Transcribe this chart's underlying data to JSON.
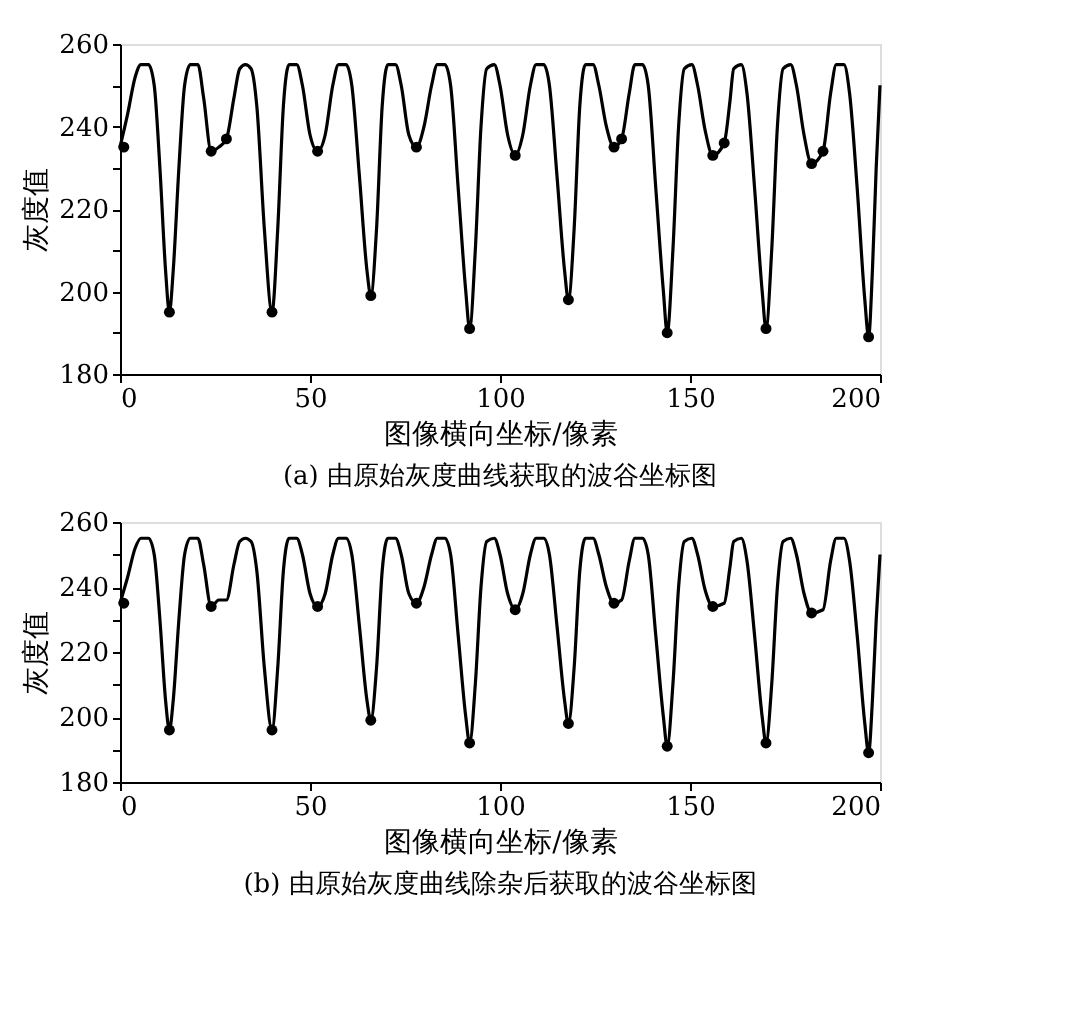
{
  "chart_data": [
    {
      "type": "line",
      "title": "(a) 由原始灰度曲线获取的波谷坐标图",
      "xlabel": "图像横向坐标/像素",
      "ylabel": "灰度值",
      "xlim": [
        0,
        200
      ],
      "xticks": [
        0,
        50,
        100,
        150,
        200
      ],
      "ylim": [
        180,
        260
      ],
      "yticks": [
        180,
        {
          "value": 190,
          "label": null
        },
        200,
        {
          "value": 210,
          "label": null
        },
        220,
        {
          "value": 230,
          "label": null
        },
        240,
        {
          "value": 250,
          "label": null
        },
        260
      ],
      "grid": false,
      "legend": false,
      "series": [
        {
          "type": "line",
          "color": "#000000",
          "marker": "none",
          "line_style": "solid",
          "x": [
            0,
            2,
            4,
            5.5,
            7.5,
            9,
            10.5,
            12,
            13,
            14,
            15.5,
            17,
            18.5,
            20.5,
            22,
            24,
            26,
            28,
            30,
            31.5,
            33,
            34.5,
            36,
            38,
            40,
            41.5,
            43,
            44.5,
            46.5,
            48,
            50,
            52,
            54,
            56,
            57.5,
            59.5,
            61,
            63,
            65,
            66,
            67.5,
            69,
            70.5,
            72.5,
            74,
            76,
            78,
            80,
            82,
            83.5,
            85.5,
            87,
            89,
            91,
            92,
            93.5,
            95,
            96.5,
            98.5,
            100,
            102,
            104,
            106,
            108,
            109.5,
            111.5,
            113,
            115,
            117,
            118,
            119.5,
            121,
            122.5,
            124.5,
            126,
            128,
            130,
            132,
            134,
            135.5,
            137.5,
            139,
            141,
            143,
            144,
            145.5,
            147,
            148.5,
            150.5,
            152,
            154,
            156,
            159,
            160.5,
            161.5,
            163.5,
            165,
            167,
            169,
            170,
            171.5,
            173,
            174.5,
            176.5,
            178,
            180,
            182,
            185,
            187,
            188.5,
            190.5,
            192,
            194,
            196,
            197,
            198,
            199,
            200
          ],
          "values": [
            235,
            243,
            252,
            255,
            255,
            250,
            230,
            205,
            195,
            205,
            230,
            250,
            255,
            255,
            247,
            234,
            235,
            237,
            247,
            254,
            255,
            254,
            245,
            215,
            195,
            215,
            245,
            255,
            255,
            250,
            238,
            234,
            238,
            250,
            255,
            255,
            250,
            228,
            205,
            199,
            215,
            245,
            255,
            255,
            250,
            238,
            235,
            240,
            250,
            255,
            255,
            250,
            225,
            200,
            191,
            210,
            240,
            254,
            255,
            250,
            238,
            233,
            238,
            250,
            255,
            255,
            250,
            228,
            205,
            198,
            215,
            245,
            255,
            255,
            250,
            240,
            235,
            237,
            248,
            255,
            255,
            250,
            225,
            200,
            190,
            210,
            240,
            254,
            255,
            250,
            239,
            233,
            236,
            246,
            254,
            255,
            248,
            225,
            200,
            191,
            210,
            240,
            254,
            255,
            250,
            238,
            231,
            234,
            248,
            255,
            255,
            248,
            225,
            198,
            189,
            205,
            230,
            250
          ]
        },
        {
          "type": "scatter",
          "color": "#000000",
          "marker": "circle",
          "x": [
            1,
            13,
            24,
            28,
            40,
            52,
            66,
            78,
            92,
            104,
            118,
            130,
            132,
            144,
            156,
            159,
            170,
            182,
            185,
            197
          ],
          "values": [
            235,
            195,
            234,
            237,
            195,
            234,
            199,
            235,
            191,
            233,
            198,
            235,
            237,
            190,
            233,
            236,
            191,
            231,
            234,
            189
          ]
        }
      ]
    },
    {
      "type": "line",
      "title": "(b) 由原始灰度曲线除杂后获取的波谷坐标图",
      "xlabel": "图像横向坐标/像素",
      "ylabel": "灰度值",
      "xlim": [
        0,
        200
      ],
      "xticks": [
        0,
        50,
        100,
        150,
        200
      ],
      "ylim": [
        180,
        260
      ],
      "yticks": [
        180,
        {
          "value": 190,
          "label": null
        },
        200,
        {
          "value": 210,
          "label": null
        },
        220,
        {
          "value": 230,
          "label": null
        },
        240,
        {
          "value": 250,
          "label": null
        },
        260
      ],
      "grid": false,
      "legend": false,
      "series": [
        {
          "type": "line",
          "color": "#000000",
          "marker": "none",
          "line_style": "solid",
          "x": [
            0,
            2,
            4,
            5.5,
            7.5,
            9,
            10.5,
            12,
            13,
            14,
            15.5,
            17,
            18.5,
            20.5,
            22,
            24,
            26,
            28,
            30,
            31.5,
            33,
            34.5,
            36,
            38,
            40,
            41.5,
            43,
            44.5,
            46.5,
            48,
            50,
            52,
            54,
            56,
            57.5,
            59.5,
            61,
            63,
            65,
            66,
            67.5,
            69,
            70.5,
            72.5,
            74,
            76,
            78,
            80,
            82,
            83.5,
            85.5,
            87,
            89,
            91,
            92,
            93.5,
            95,
            96.5,
            98.5,
            100,
            102,
            104,
            106,
            108,
            109.5,
            111.5,
            113,
            115,
            117,
            118,
            119.5,
            121,
            122.5,
            124.5,
            126,
            128,
            130,
            132,
            134,
            135.5,
            137.5,
            139,
            141,
            143,
            144,
            145.5,
            147,
            148.5,
            150.5,
            152,
            154,
            156,
            159,
            160.5,
            161.5,
            163.5,
            165,
            167,
            169,
            170,
            171.5,
            173,
            174.5,
            176.5,
            178,
            180,
            182,
            185,
            187,
            188.5,
            190.5,
            192,
            194,
            196,
            197,
            198,
            199,
            200
          ],
          "values": [
            235,
            243,
            252,
            255,
            255,
            250,
            230,
            205,
            196,
            205,
            230,
            250,
            255,
            255,
            247,
            234,
            236,
            236,
            247,
            254,
            255,
            254,
            245,
            215,
            196,
            215,
            245,
            255,
            255,
            250,
            238,
            234,
            238,
            250,
            255,
            255,
            250,
            228,
            205,
            199,
            215,
            245,
            255,
            255,
            250,
            238,
            235,
            240,
            250,
            255,
            255,
            250,
            225,
            200,
            192,
            210,
            240,
            254,
            255,
            250,
            238,
            233,
            238,
            250,
            255,
            255,
            250,
            228,
            205,
            198,
            215,
            245,
            255,
            255,
            250,
            240,
            235,
            236,
            248,
            255,
            255,
            250,
            225,
            200,
            191,
            210,
            240,
            254,
            255,
            250,
            239,
            234,
            235,
            246,
            254,
            255,
            248,
            225,
            200,
            192,
            210,
            240,
            254,
            255,
            250,
            238,
            232,
            233,
            248,
            255,
            255,
            248,
            225,
            198,
            189,
            205,
            230,
            250
          ]
        },
        {
          "type": "scatter",
          "color": "#000000",
          "marker": "circle",
          "x": [
            1,
            13,
            24,
            40,
            52,
            66,
            78,
            92,
            104,
            118,
            130,
            144,
            156,
            170,
            182,
            197
          ],
          "values": [
            235,
            196,
            234,
            196,
            234,
            199,
            235,
            192,
            233,
            198,
            235,
            191,
            234,
            192,
            232,
            189
          ]
        }
      ]
    }
  ]
}
